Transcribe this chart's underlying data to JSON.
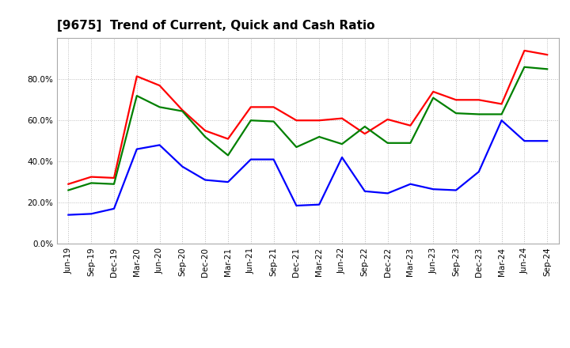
{
  "title": "[9675]  Trend of Current, Quick and Cash Ratio",
  "x_labels": [
    "Jun-19",
    "Sep-19",
    "Dec-19",
    "Mar-20",
    "Jun-20",
    "Sep-20",
    "Dec-20",
    "Mar-21",
    "Jun-21",
    "Sep-21",
    "Dec-21",
    "Mar-22",
    "Jun-22",
    "Sep-22",
    "Dec-22",
    "Mar-23",
    "Jun-23",
    "Sep-23",
    "Dec-23",
    "Mar-24",
    "Jun-24",
    "Sep-24"
  ],
  "current_ratio": [
    29.0,
    32.5,
    32.0,
    81.5,
    77.0,
    65.0,
    55.0,
    51.0,
    66.5,
    66.5,
    60.0,
    60.0,
    61.0,
    53.5,
    60.5,
    57.5,
    74.0,
    70.0,
    70.0,
    68.0,
    94.0,
    92.0
  ],
  "quick_ratio": [
    26.0,
    29.5,
    29.0,
    72.0,
    66.5,
    64.5,
    52.0,
    43.0,
    60.0,
    59.5,
    47.0,
    52.0,
    48.5,
    57.0,
    49.0,
    49.0,
    71.0,
    63.5,
    63.0,
    63.0,
    86.0,
    85.0
  ],
  "cash_ratio": [
    14.0,
    14.5,
    17.0,
    46.0,
    48.0,
    37.5,
    31.0,
    30.0,
    41.0,
    41.0,
    18.5,
    19.0,
    42.0,
    25.5,
    24.5,
    29.0,
    26.5,
    26.0,
    35.0,
    60.0,
    50.0,
    50.0
  ],
  "current_color": "#FF0000",
  "quick_color": "#008000",
  "cash_color": "#0000FF",
  "bg_color": "#FFFFFF",
  "plot_bg_color": "#FFFFFF",
  "ylim": [
    0,
    100
  ],
  "yticks": [
    0,
    20,
    40,
    60,
    80
  ],
  "grid_color": "#BBBBBB",
  "line_width": 1.6,
  "title_fontsize": 11,
  "tick_fontsize": 7.5,
  "legend_fontsize": 9
}
